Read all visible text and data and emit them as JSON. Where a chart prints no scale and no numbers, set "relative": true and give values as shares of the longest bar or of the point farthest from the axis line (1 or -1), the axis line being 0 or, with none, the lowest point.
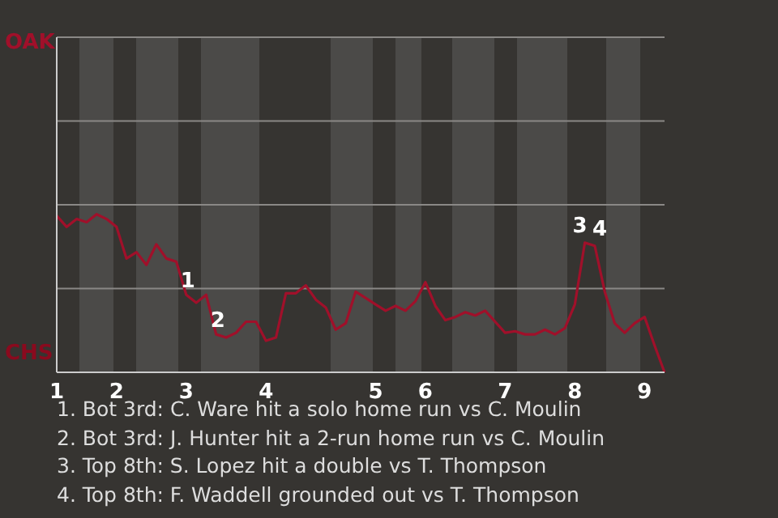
{
  "chart_data": {
    "type": "line",
    "relative": true,
    "categories": [
      "1",
      null,
      null,
      null,
      null,
      null,
      "2",
      null,
      null,
      null,
      null,
      null,
      null,
      "3",
      null,
      null,
      null,
      null,
      null,
      null,
      null,
      "4",
      null,
      null,
      null,
      null,
      null,
      null,
      null,
      null,
      null,
      null,
      "5",
      null,
      null,
      null,
      null,
      "6",
      null,
      null,
      null,
      null,
      null,
      null,
      null,
      "7",
      null,
      null,
      null,
      null,
      null,
      null,
      "8",
      null,
      null,
      null,
      null,
      null,
      null,
      "9",
      null,
      null
    ],
    "series": [
      {
        "color": "#a0102a",
        "values": [
          0.99,
          0.92,
          0.97,
          0.95,
          1,
          0.97,
          0.92,
          0.72,
          0.76,
          0.68,
          0.81,
          0.72,
          0.7,
          0.49,
          0.44,
          0.49,
          0.24,
          0.22,
          0.25,
          0.32,
          0.32,
          0.2,
          0.22,
          0.5,
          0.5,
          0.55,
          0.46,
          0.41,
          0.27,
          0.31,
          0.51,
          0.47,
          0.43,
          0.39,
          0.42,
          0.39,
          0.45,
          0.57,
          0.42,
          0.33,
          0.35,
          0.38,
          0.36,
          0.39,
          0.32,
          0.25,
          0.26,
          0.24,
          0.24,
          0.27,
          0.24,
          0.28,
          0.43,
          0.82,
          0.8,
          0.51,
          0.31,
          0.25,
          0.31,
          0.35,
          0.17,
          0
        ]
      }
    ],
    "ref_lines": [
      {
        "axis": "y",
        "value": 0.53,
        "color": "#8a8886"
      },
      {
        "axis": "y",
        "value": 1.06,
        "color": "#8a8886"
      },
      {
        "axis": "y",
        "value": 1.59,
        "color": "#8a8886"
      },
      {
        "axis": "y",
        "value": 2.12,
        "color": "#8a8886"
      }
    ],
    "marker": "none",
    "line_style": "solid",
    "legend": false,
    "annotations": [
      "OAK",
      "CHS",
      "1. Bot 3rd: C. Ware hit a solo home run vs C. Moulin",
      "2. Bot 3rd: J. Hunter hit a 2-run home run vs C. Moulin",
      "3. Top 8th: S. Lopez hit a double vs T. Thompson",
      "4. Top 8th: F. Waddell grounded out vs T. Thompson",
      {
        "text": "1",
        "y": 0.49
      },
      {
        "text": "2",
        "y": 0.24
      },
      {
        "text": "3",
        "y": 0.82
      },
      {
        "text": "4",
        "y": 0.8
      }
    ]
  }
}
